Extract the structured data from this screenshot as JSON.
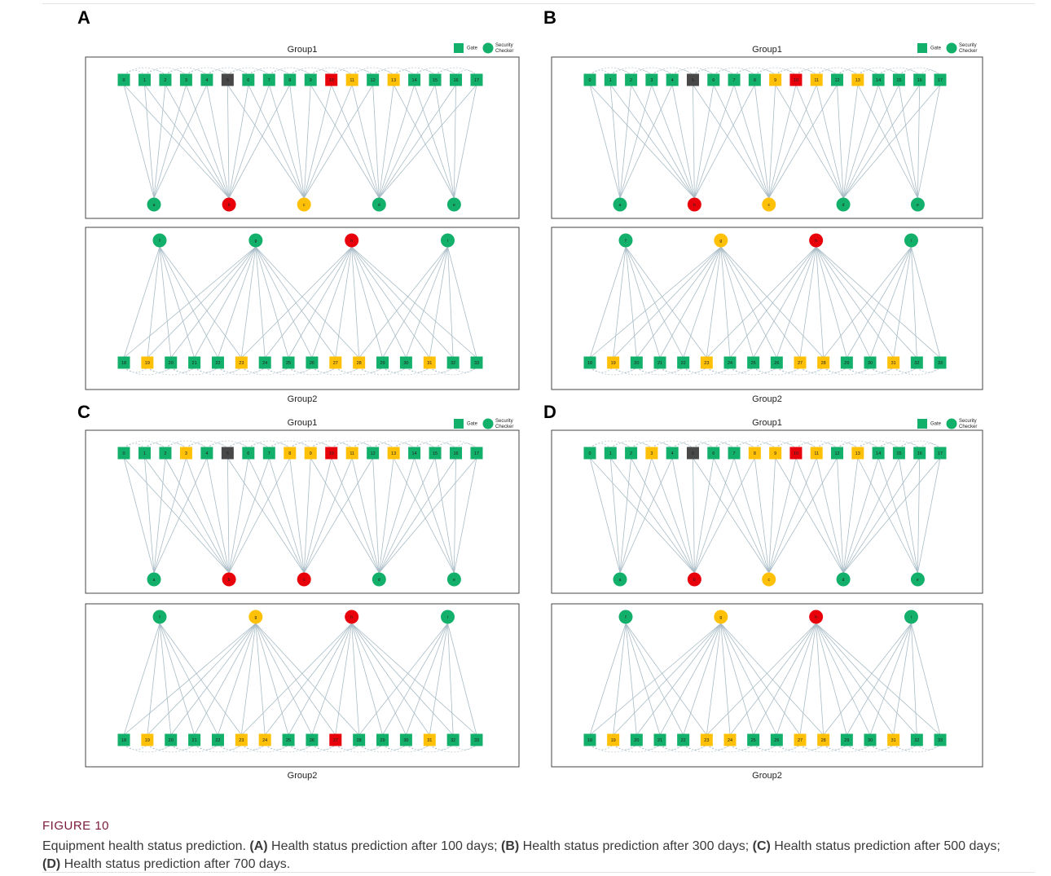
{
  "colors": {
    "healthy": "#12b06a",
    "warning": "#ffc107",
    "fault": "#e8000b",
    "offline": "#484848",
    "edge": "#a9bcc6"
  },
  "legend": {
    "gate_label": "Gate",
    "checker_label": "Security Checker"
  },
  "group_labels": {
    "top": "Group1",
    "bottom": "Group2"
  },
  "panels": [
    {
      "letter": "A",
      "group1_gate_status": [
        "g",
        "g",
        "g",
        "g",
        "g",
        "k",
        "g",
        "g",
        "g",
        "g",
        "r",
        "y",
        "g",
        "y",
        "g",
        "g",
        "g",
        "g"
      ],
      "group1_checker_status": [
        "g",
        "r",
        "y",
        "g",
        "g"
      ],
      "group2_checker_status": [
        "g",
        "g",
        "r",
        "g"
      ],
      "group2_gate_status": [
        "g",
        "y",
        "g",
        "g",
        "g",
        "y",
        "g",
        "g",
        "g",
        "y",
        "y",
        "g",
        "g",
        "y",
        "g",
        "g"
      ]
    },
    {
      "letter": "B",
      "group1_gate_status": [
        "g",
        "g",
        "g",
        "g",
        "g",
        "k",
        "g",
        "g",
        "g",
        "y",
        "r",
        "y",
        "g",
        "y",
        "g",
        "g",
        "g",
        "g"
      ],
      "group1_checker_status": [
        "g",
        "r",
        "y",
        "g",
        "g"
      ],
      "group2_checker_status": [
        "g",
        "y",
        "r",
        "g"
      ],
      "group2_gate_status": [
        "g",
        "y",
        "g",
        "g",
        "g",
        "y",
        "g",
        "g",
        "g",
        "y",
        "y",
        "g",
        "g",
        "y",
        "g",
        "g"
      ]
    },
    {
      "letter": "C",
      "group1_gate_status": [
        "g",
        "g",
        "g",
        "y",
        "g",
        "k",
        "g",
        "g",
        "y",
        "y",
        "r",
        "y",
        "g",
        "y",
        "g",
        "g",
        "g",
        "g"
      ],
      "group1_checker_status": [
        "g",
        "r",
        "r",
        "g",
        "g"
      ],
      "group2_checker_status": [
        "g",
        "y",
        "r",
        "g"
      ],
      "group2_gate_status": [
        "g",
        "y",
        "g",
        "g",
        "g",
        "y",
        "y",
        "g",
        "g",
        "r",
        "g",
        "g",
        "g",
        "y",
        "g",
        "g"
      ]
    },
    {
      "letter": "D",
      "group1_gate_status": [
        "g",
        "g",
        "g",
        "y",
        "g",
        "k",
        "g",
        "g",
        "y",
        "y",
        "r",
        "y",
        "g",
        "y",
        "g",
        "g",
        "g",
        "g"
      ],
      "group1_checker_status": [
        "g",
        "r",
        "y",
        "g",
        "g"
      ],
      "group2_checker_status": [
        "g",
        "y",
        "r",
        "g"
      ],
      "group2_gate_status": [
        "g",
        "y",
        "g",
        "g",
        "g",
        "y",
        "y",
        "g",
        "g",
        "y",
        "y",
        "g",
        "g",
        "y",
        "g",
        "g"
      ]
    }
  ],
  "group1_gate_ids": [
    "0",
    "1",
    "2",
    "3",
    "4",
    "5",
    "6",
    "7",
    "8",
    "9",
    "10",
    "11",
    "12",
    "13",
    "14",
    "15",
    "16",
    "17"
  ],
  "group1_checker_ids": [
    "a",
    "b",
    "c",
    "d",
    "e"
  ],
  "group2_checker_ids": [
    "f",
    "g",
    "h",
    "i"
  ],
  "group2_gate_ids": [
    "18",
    "19",
    "20",
    "21",
    "22",
    "23",
    "24",
    "25",
    "26",
    "27",
    "28",
    "29",
    "30",
    "31",
    "32",
    "33"
  ],
  "caption": {
    "label": "FIGURE 10",
    "intro": "Equipment health status prediction.",
    "items": [
      {
        "tag": "(A)",
        "text": " Health status prediction after 100 days;"
      },
      {
        "tag": "(B)",
        "text": " Health status prediction after 300 days;"
      },
      {
        "tag": "(C)",
        "text": " Health status prediction after 500 days;"
      },
      {
        "tag": "(D)",
        "text": " Health status prediction after 700 days."
      }
    ]
  }
}
